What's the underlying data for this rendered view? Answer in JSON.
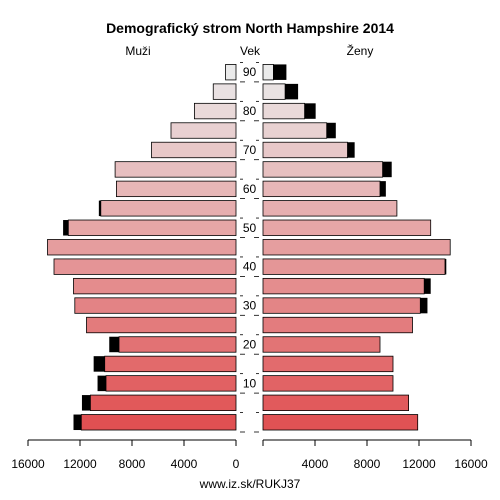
{
  "chart_data": {
    "type": "bar",
    "title": "Demografický strom North Hampshire 2014",
    "male_label": "Muži",
    "age_label": "Vek",
    "female_label": "Ženy",
    "footer": "www.iz.sk/RUKJ37",
    "age_groups": [
      "0-4",
      "5-9",
      "10-14",
      "15-19",
      "20-24",
      "25-29",
      "30-34",
      "35-39",
      "40-44",
      "45-49",
      "50-54",
      "55-59",
      "60-64",
      "65-69",
      "70-74",
      "75-79",
      "80-84",
      "85-89",
      "90+"
    ],
    "age_ticks": [
      10,
      20,
      30,
      40,
      50,
      60,
      70,
      80,
      90
    ],
    "x_ticks": [
      16000,
      12000,
      8000,
      4000,
      0,
      4000,
      8000,
      12000,
      16000
    ],
    "xlim": [
      0,
      16000
    ],
    "series": [
      {
        "name": "Muži",
        "values": [
          11900,
          11200,
          10000,
          10100,
          9000,
          11500,
          12400,
          12500,
          14000,
          14500,
          12900,
          10400,
          9200,
          9300,
          6500,
          5000,
          3200,
          1750,
          800
        ],
        "excess": [
          600,
          650,
          650,
          850,
          750,
          0,
          0,
          0,
          0,
          0,
          400,
          150,
          0,
          0,
          0,
          0,
          0,
          0,
          0
        ]
      },
      {
        "name": "Ženy",
        "values": [
          11900,
          11200,
          10000,
          10000,
          9000,
          11500,
          12100,
          12400,
          14000,
          14400,
          12900,
          10300,
          9000,
          9200,
          6500,
          4900,
          3200,
          1700,
          800
        ],
        "excess": [
          0,
          0,
          0,
          0,
          0,
          0,
          550,
          500,
          100,
          0,
          0,
          0,
          450,
          700,
          550,
          700,
          850,
          1000,
          1000
        ]
      }
    ]
  }
}
